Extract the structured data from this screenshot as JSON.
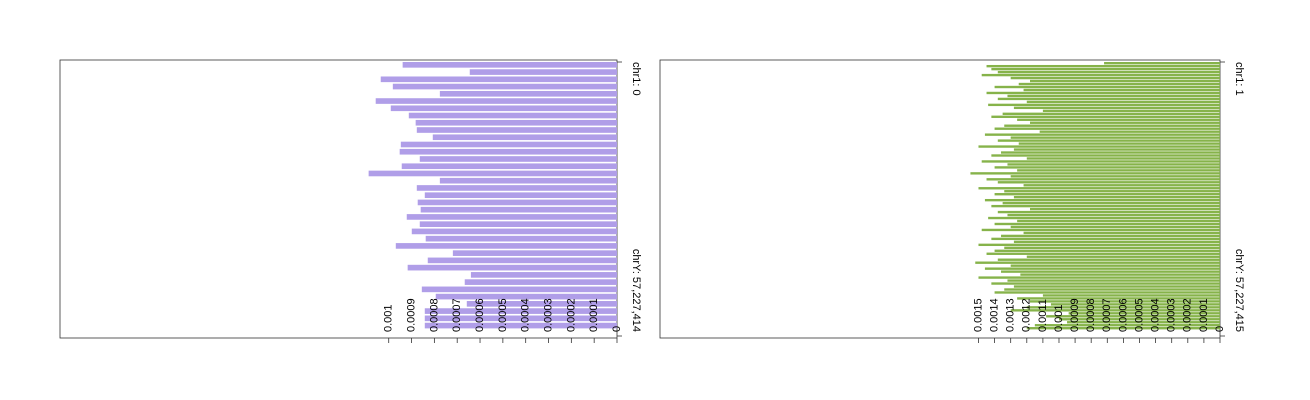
{
  "chart_data": [
    {
      "type": "bar",
      "orientation": "horizontal",
      "value_axis_reversed": true,
      "color": "#b09ee8",
      "xlim": [
        0,
        0.00244
      ],
      "xticks": [
        0,
        0.0001,
        0.0002,
        0.0003,
        0.0004,
        0.0005,
        0.0006,
        0.0007,
        0.0008,
        0.0009,
        0.001
      ],
      "position_labels": [
        "chr1: 0",
        "chrY: 57,227,414"
      ],
      "values": [
        0.000939,
        0.000645,
        0.001035,
        0.000982,
        0.000776,
        0.001057,
        0.000991,
        0.000912,
        0.000882,
        0.000877,
        0.000807,
        0.000947,
        0.000952,
        0.000864,
        0.000943,
        0.001088,
        0.000776,
        0.000877,
        0.000842,
        0.000873,
        0.00086,
        0.000921,
        0.000864,
        0.000899,
        0.000838,
        0.000969,
        0.000719,
        0.000829,
        0.000917,
        0.00064,
        0.000667,
        0.000855,
        0.000794,
        0.000658,
        0.000842,
        0.000842,
        0.000842
      ]
    },
    {
      "type": "bar",
      "orientation": "horizontal",
      "value_axis_reversed": true,
      "color": "#86b34a",
      "xlim": [
        0,
        0.003478
      ],
      "xticks": [
        0,
        0.0001,
        0.0002,
        0.0003,
        0.0004,
        0.0005,
        0.0006,
        0.0007,
        0.0008,
        0.0009,
        0.001,
        0.0011,
        0.0012,
        0.0013,
        0.0014,
        0.0015
      ],
      "position_labels": [
        "chr1: 1",
        "chrY: 57,227,415"
      ],
      "values": [
        0.00072,
        0.00145,
        0.00142,
        0.00138,
        0.00148,
        0.0013,
        0.00118,
        0.00125,
        0.0014,
        0.00122,
        0.00145,
        0.00132,
        0.00138,
        0.0012,
        0.00144,
        0.00128,
        0.0011,
        0.00135,
        0.00142,
        0.00126,
        0.00118,
        0.00134,
        0.0014,
        0.00112,
        0.00146,
        0.0013,
        0.00138,
        0.00125,
        0.0015,
        0.00128,
        0.00136,
        0.00142,
        0.0012,
        0.00148,
        0.00132,
        0.0014,
        0.00126,
        0.00155,
        0.0013,
        0.00145,
        0.00138,
        0.00122,
        0.0015,
        0.00134,
        0.0014,
        0.00128,
        0.00146,
        0.00135,
        0.00142,
        0.00118,
        0.00138,
        0.00132,
        0.00144,
        0.00126,
        0.0014,
        0.0013,
        0.00148,
        0.00122,
        0.00136,
        0.00142,
        0.00128,
        0.0015,
        0.00134,
        0.0014,
        0.00145,
        0.0012,
        0.00138,
        0.00152,
        0.0013,
        0.00146,
        0.00136,
        0.00124,
        0.0015,
        0.00132,
        0.00142,
        0.00128,
        0.00134,
        0.0014,
        0.0011,
        0.00126,
        0.00118,
        0.00105,
        0.0012,
        0.0013,
        0.00094,
        0.00108,
        0.001,
        0.00095,
        0.00115,
        0.0012
      ]
    }
  ]
}
